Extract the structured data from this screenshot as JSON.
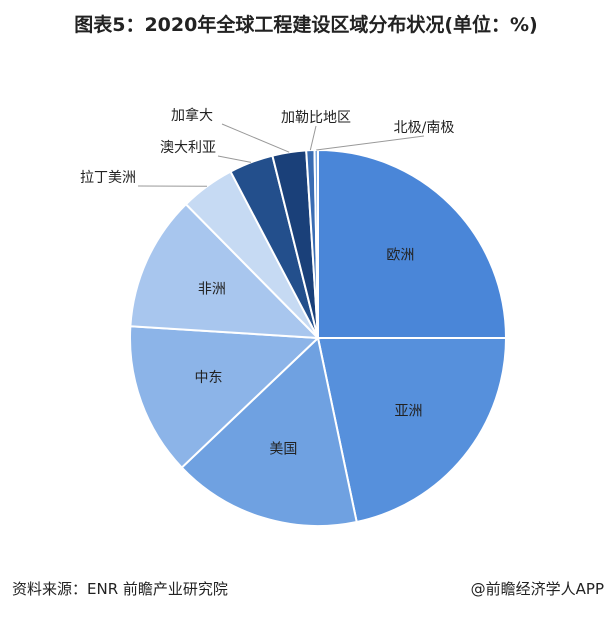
{
  "chart_data": {
    "type": "pie",
    "title": "图表5：2020年全球工程建设区域分布状况(单位：%)",
    "categories": [
      "欧洲",
      "亚洲",
      "美国",
      "中东",
      "非洲",
      "拉丁美洲",
      "澳大利亚",
      "加拿大",
      "加勒比地区",
      "北极/南极"
    ],
    "values": [
      25,
      21.7,
      16.2,
      13.1,
      11.6,
      4.7,
      3.8,
      2.9,
      0.7,
      0.3
    ],
    "colors": [
      "#4a86d8",
      "#5690dc",
      "#6fa1e1",
      "#8cb4e8",
      "#a8c6ee",
      "#c6daf3",
      "#234f8c",
      "#1a4079",
      "#3a6db3",
      "#7aa6dc"
    ],
    "source": "资料来源：ENR 前瞻产业研究院",
    "credit": "@前瞻经济学人APP"
  }
}
